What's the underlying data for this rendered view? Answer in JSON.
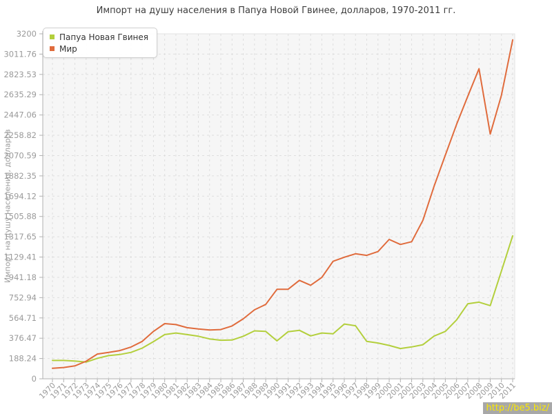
{
  "title": "Импорт на душу населения в Папуа Новой Гвинее, долларов, 1970-2011 гг.",
  "watermark": "http://be5.biz/",
  "chart_data": {
    "type": "line",
    "title": "Импорт на душу населения в Папуа Новой Гвинее, долларов, 1970-2011 гг.",
    "xlabel": "",
    "ylabel": "Импорт на душу населения, долларов",
    "ylim": [
      0,
      3200
    ],
    "grid": true,
    "legend_position": "top-left",
    "y_tick_labels": [
      "3200",
      "3011.76",
      "2823.53",
      "2635.29",
      "2447.06",
      "2258.82",
      "2070.59",
      "1882.35",
      "1694.12",
      "1505.88",
      "1317.65",
      "1129.41",
      "941.18",
      "752.94",
      "564.71",
      "376.47",
      "188.24",
      "0"
    ],
    "x": [
      1970,
      1971,
      1972,
      1973,
      1974,
      1975,
      1976,
      1977,
      1978,
      1979,
      1980,
      1981,
      1982,
      1983,
      1984,
      1985,
      1986,
      1987,
      1988,
      1989,
      1990,
      1991,
      1992,
      1993,
      1994,
      1995,
      1996,
      1997,
      1998,
      1999,
      2000,
      2001,
      2002,
      2003,
      2004,
      2005,
      2006,
      2007,
      2008,
      2009,
      2010,
      2011
    ],
    "series": [
      {
        "name": "Папуа Новая Гвинея",
        "color": "#b3cf3c",
        "values": [
          170,
          170,
          165,
          155,
          190,
          215,
          225,
          245,
          285,
          345,
          410,
          425,
          410,
          395,
          370,
          358,
          360,
          395,
          445,
          440,
          352,
          437,
          450,
          398,
          425,
          417,
          508,
          492,
          347,
          332,
          310,
          281,
          296,
          316,
          396,
          440,
          546,
          696,
          711,
          679,
          1000,
          1326
        ]
      },
      {
        "name": "Мир",
        "color": "#e06b3c",
        "values": [
          98,
          105,
          120,
          163,
          230,
          245,
          262,
          295,
          347,
          440,
          512,
          503,
          474,
          462,
          453,
          457,
          490,
          557,
          640,
          690,
          830,
          831,
          913,
          868,
          940,
          1090,
          1128,
          1160,
          1145,
          1180,
          1293,
          1246,
          1272,
          1470,
          1786,
          2074,
          2360,
          2620,
          2876,
          2270,
          2630,
          3143
        ]
      }
    ]
  }
}
